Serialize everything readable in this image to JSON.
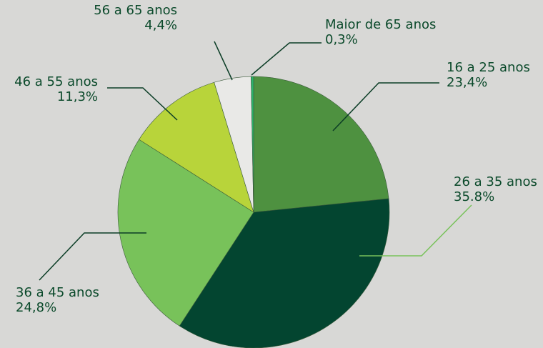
{
  "chart_data": {
    "type": "pie",
    "categories": [
      "16 a 25 anos",
      "26 a 35 anos",
      "36 a 45 anos",
      "46 a 55 anos",
      "56 a 65 anos",
      "Maior de 65 anos"
    ],
    "values": [
      23.4,
      35.8,
      24.8,
      11.3,
      4.4,
      0.3
    ],
    "value_labels": [
      "23,4%",
      "35.8%",
      "24,8%",
      "11,3%",
      "4,4%",
      "0,3%"
    ],
    "colors": [
      "#4e9140",
      "#034530",
      "#78c25a",
      "#b8d43a",
      "#e9e9e7",
      "#2db36a"
    ]
  }
}
